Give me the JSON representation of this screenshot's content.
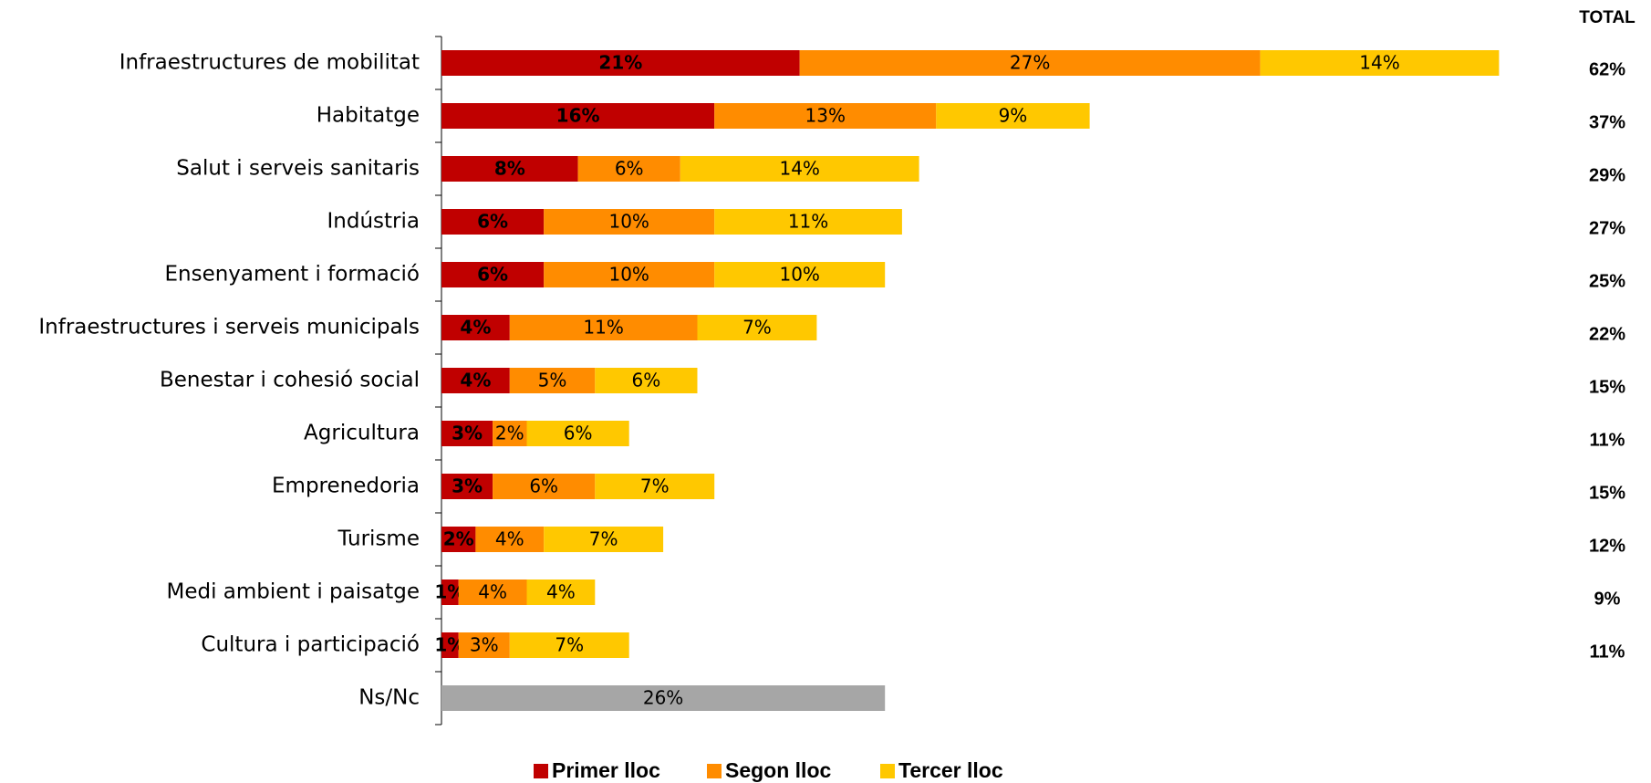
{
  "chart_data": {
    "type": "stacked-barh",
    "categories": [
      "Infraestructures de mobilitat",
      "Habitatge",
      "Salut i serveis sanitaris",
      "Indústria",
      "Ensenyament i formació",
      "Infraestructures i serveis municipals",
      "Benestar i cohesió social",
      "Agricultura",
      "Emprenedoria",
      "Turisme",
      "Medi ambient i paisatge",
      "Cultura i participació",
      "Ns/Nc"
    ],
    "series": [
      {
        "name": "Primer lloc",
        "color": "#c00000",
        "values": [
          21,
          16,
          8,
          6,
          6,
          4,
          4,
          3,
          3,
          2,
          1,
          1,
          null
        ],
        "value_labels": [
          "21%",
          "16%",
          "8%",
          "6%",
          "6%",
          "4%",
          "4%",
          "3%",
          "3%",
          "2%",
          "1%",
          "1%",
          null
        ]
      },
      {
        "name": "Segon lloc",
        "color": "#ff8c00",
        "values": [
          27,
          13,
          6,
          10,
          10,
          11,
          5,
          2,
          6,
          4,
          4,
          3,
          null
        ],
        "value_labels": [
          "27%",
          "13%",
          "6%",
          "10%",
          "10%",
          "11%",
          "5%",
          "2%",
          "6%",
          "4%",
          "4%",
          "3%",
          null
        ]
      },
      {
        "name": "Tercer lloc",
        "color": "#ffc800",
        "values": [
          14,
          9,
          14,
          11,
          10,
          7,
          6,
          6,
          7,
          7,
          4,
          7,
          null
        ],
        "value_labels": [
          "14%",
          "9%",
          "14%",
          "11%",
          "10%",
          "7%",
          "6%",
          "6%",
          "7%",
          "7%",
          "4%",
          "7%",
          null
        ]
      }
    ],
    "extra_bar": {
      "category_index": 12,
      "value": 26,
      "value_label": "26%",
      "color": "#a6a6a6"
    },
    "totals": {
      "label": "TOTAL",
      "values": [
        62,
        37,
        29,
        27,
        25,
        22,
        15,
        11,
        15,
        12,
        9,
        11
      ],
      "value_labels": [
        "62%",
        "37%",
        "29%",
        "27%",
        "25%",
        "22%",
        "15%",
        "11%",
        "15%",
        "12%",
        "9%",
        "11%"
      ]
    },
    "xlim": [
      0,
      70
    ],
    "legend": "bottom"
  }
}
